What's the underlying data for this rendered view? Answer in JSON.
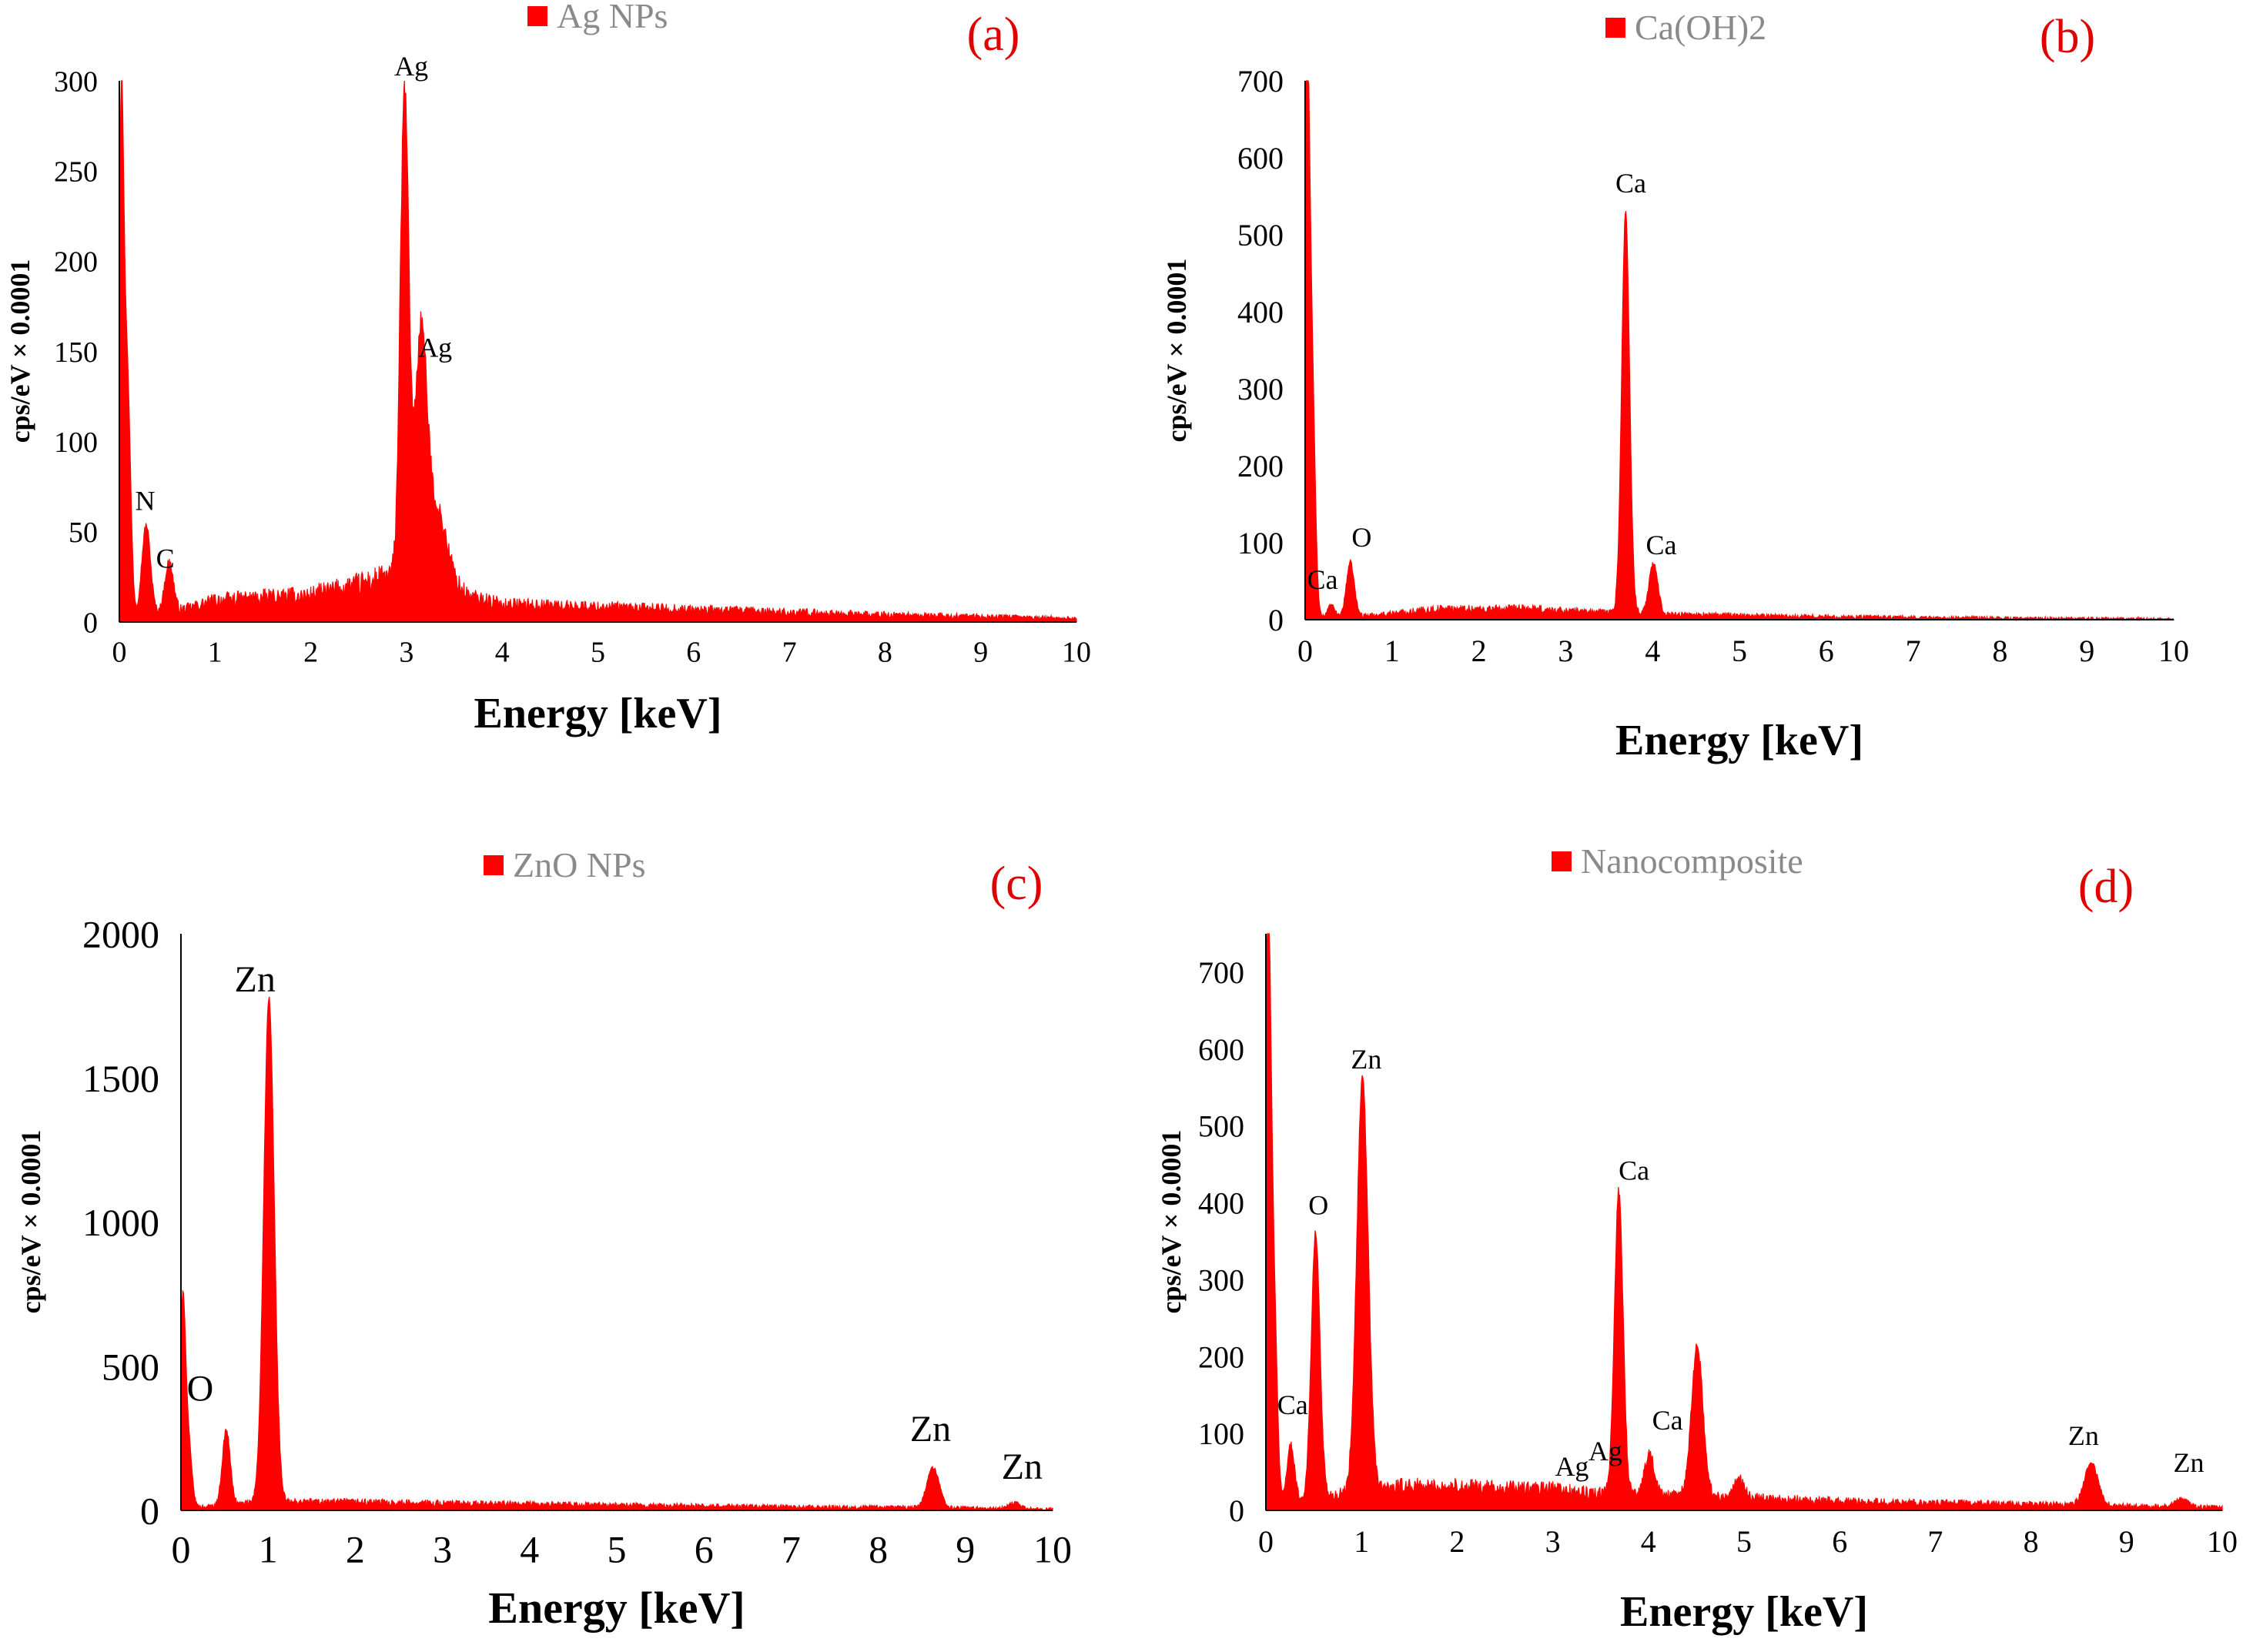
{
  "colors": {
    "spectrum": "#ff0000",
    "panel_label": "#e00000",
    "legend_text": "#8a8a8a",
    "axis": "#000000"
  },
  "chart_data": [
    {
      "type": "area",
      "panel": "(a)",
      "legend": "Ag NPs",
      "xlabel": "Energy [keV]",
      "ylabel": "cps/eV × 0.0001",
      "xlim": [
        0,
        10
      ],
      "ylim": [
        0,
        300
      ],
      "xticks": [
        0,
        1,
        2,
        3,
        4,
        5,
        6,
        7,
        8,
        9,
        10
      ],
      "yticks": [
        0,
        50,
        100,
        150,
        200,
        250,
        300
      ],
      "baseline": [
        [
          0.15,
          3
        ],
        [
          0.6,
          6
        ],
        [
          1,
          12
        ],
        [
          2,
          15
        ],
        [
          2.6,
          22
        ],
        [
          2.8,
          25
        ],
        [
          3.6,
          15
        ],
        [
          4,
          10
        ],
        [
          6,
          7
        ],
        [
          8,
          4
        ],
        [
          10,
          2
        ]
      ],
      "peaks": [
        {
          "x": 0.02,
          "y": 268,
          "w": 0.025
        },
        {
          "x": 0.08,
          "y": 140,
          "w": 0.035
        },
        {
          "x": 0.28,
          "y": 50,
          "w": 0.045
        },
        {
          "x": 0.52,
          "y": 28,
          "w": 0.045
        },
        {
          "x": 2.98,
          "y": 270,
          "w": 0.045
        },
        {
          "x": 3.15,
          "y": 125,
          "w": 0.06
        },
        {
          "x": 3.3,
          "y": 45,
          "w": 0.12
        }
      ],
      "annotations": [
        {
          "text": "Ag",
          "x": 3.05,
          "y": 303
        },
        {
          "text": "Ag",
          "x": 3.3,
          "y": 147
        },
        {
          "text": "N",
          "x": 0.27,
          "y": 62
        },
        {
          "text": "C",
          "x": 0.48,
          "y": 30
        }
      ]
    },
    {
      "type": "area",
      "panel": "(b)",
      "legend": "Ca(OH)2",
      "xlabel": "Energy [keV]",
      "ylabel": "cps/eV × 0.0001",
      "xlim": [
        0,
        10
      ],
      "ylim": [
        0,
        700
      ],
      "xticks": [
        0,
        1,
        2,
        3,
        4,
        5,
        6,
        7,
        8,
        9,
        10
      ],
      "yticks": [
        0,
        100,
        200,
        300,
        400,
        500,
        600,
        700
      ],
      "baseline": [
        [
          0.15,
          3
        ],
        [
          0.8,
          6
        ],
        [
          1.5,
          14
        ],
        [
          2.5,
          14
        ],
        [
          3.4,
          10
        ],
        [
          4.3,
          7
        ],
        [
          6,
          4
        ],
        [
          8,
          2
        ],
        [
          10,
          1
        ]
      ],
      "peaks": [
        {
          "x": 0.02,
          "y": 700,
          "w": 0.03
        },
        {
          "x": 0.08,
          "y": 300,
          "w": 0.035
        },
        {
          "x": 0.3,
          "y": 15,
          "w": 0.04
        },
        {
          "x": 0.52,
          "y": 70,
          "w": 0.045
        },
        {
          "x": 3.69,
          "y": 520,
          "w": 0.045
        },
        {
          "x": 4.01,
          "y": 65,
          "w": 0.05
        }
      ],
      "annotations": [
        {
          "text": "Ca",
          "x": 3.75,
          "y": 555
        },
        {
          "text": "Ca",
          "x": 4.1,
          "y": 85
        },
        {
          "text": "O",
          "x": 0.65,
          "y": 95
        },
        {
          "text": "Ca",
          "x": 0.2,
          "y": 40
        }
      ]
    },
    {
      "type": "area",
      "panel": "(c)",
      "legend": "ZnO NPs",
      "xlabel": "Energy [keV]",
      "ylabel": "cps/eV × 0.0001",
      "xlim": [
        0,
        10
      ],
      "ylim": [
        0,
        2000
      ],
      "xticks": [
        0,
        1,
        2,
        3,
        4,
        5,
        6,
        7,
        8,
        9,
        10
      ],
      "yticks": [
        0,
        500,
        1000,
        1500,
        2000
      ],
      "baseline": [
        [
          0.15,
          10
        ],
        [
          0.8,
          25
        ],
        [
          1.5,
          30
        ],
        [
          3,
          25
        ],
        [
          5,
          18
        ],
        [
          7,
          12
        ],
        [
          8.5,
          10
        ],
        [
          10,
          4
        ]
      ],
      "peaks": [
        {
          "x": 0.02,
          "y": 670,
          "w": 0.03
        },
        {
          "x": 0.08,
          "y": 250,
          "w": 0.04
        },
        {
          "x": 0.52,
          "y": 260,
          "w": 0.045
        },
        {
          "x": 1.01,
          "y": 1750,
          "w": 0.06
        },
        {
          "x": 8.63,
          "y": 140,
          "w": 0.07
        },
        {
          "x": 9.57,
          "y": 22,
          "w": 0.07
        }
      ],
      "annotations": [
        {
          "text": "Zn",
          "x": 0.85,
          "y": 1800
        },
        {
          "text": "O",
          "x": 0.22,
          "y": 380
        },
        {
          "text": "Zn",
          "x": 8.6,
          "y": 240
        },
        {
          "text": "Zn",
          "x": 9.65,
          "y": 110
        }
      ]
    },
    {
      "type": "area",
      "panel": "(d)",
      "legend": "Nanocomposite",
      "xlabel": "Energy [keV]",
      "ylabel": "cps/eV × 0.0001",
      "xlim": [
        0,
        10
      ],
      "ylim": [
        0,
        750
      ],
      "xticks": [
        0,
        1,
        2,
        3,
        4,
        5,
        6,
        7,
        8,
        9,
        10
      ],
      "yticks": [
        0,
        100,
        200,
        300,
        400,
        500,
        600,
        700
      ],
      "baseline": [
        [
          0.15,
          8
        ],
        [
          0.7,
          20
        ],
        [
          1.5,
          32
        ],
        [
          3,
          28
        ],
        [
          3.4,
          22
        ],
        [
          4.8,
          18
        ],
        [
          6,
          12
        ],
        [
          8,
          8
        ],
        [
          10,
          4
        ]
      ],
      "peaks": [
        {
          "x": 0.02,
          "y": 740,
          "w": 0.03
        },
        {
          "x": 0.08,
          "y": 280,
          "w": 0.035
        },
        {
          "x": 0.26,
          "y": 75,
          "w": 0.04
        },
        {
          "x": 0.52,
          "y": 345,
          "w": 0.045
        },
        {
          "x": 1.01,
          "y": 535,
          "w": 0.06
        },
        {
          "x": 3.69,
          "y": 395,
          "w": 0.045
        },
        {
          "x": 4.01,
          "y": 55,
          "w": 0.05
        },
        {
          "x": 4.51,
          "y": 195,
          "w": 0.06
        },
        {
          "x": 4.95,
          "y": 25,
          "w": 0.05
        },
        {
          "x": 8.63,
          "y": 55,
          "w": 0.07
        },
        {
          "x": 9.57,
          "y": 10,
          "w": 0.07
        }
      ],
      "annotations": [
        {
          "text": "Zn",
          "x": 1.05,
          "y": 575
        },
        {
          "text": "O",
          "x": 0.55,
          "y": 385
        },
        {
          "text": "Ca",
          "x": 3.85,
          "y": 430
        },
        {
          "text": "Ca",
          "x": 4.2,
          "y": 105
        },
        {
          "text": "Ca",
          "x": 0.28,
          "y": 125
        },
        {
          "text": "Ag",
          "x": 3.2,
          "y": 45
        },
        {
          "text": "Ag",
          "x": 3.55,
          "y": 65
        },
        {
          "text": "Zn",
          "x": 8.55,
          "y": 85
        },
        {
          "text": "Zn",
          "x": 9.65,
          "y": 50
        }
      ]
    }
  ]
}
